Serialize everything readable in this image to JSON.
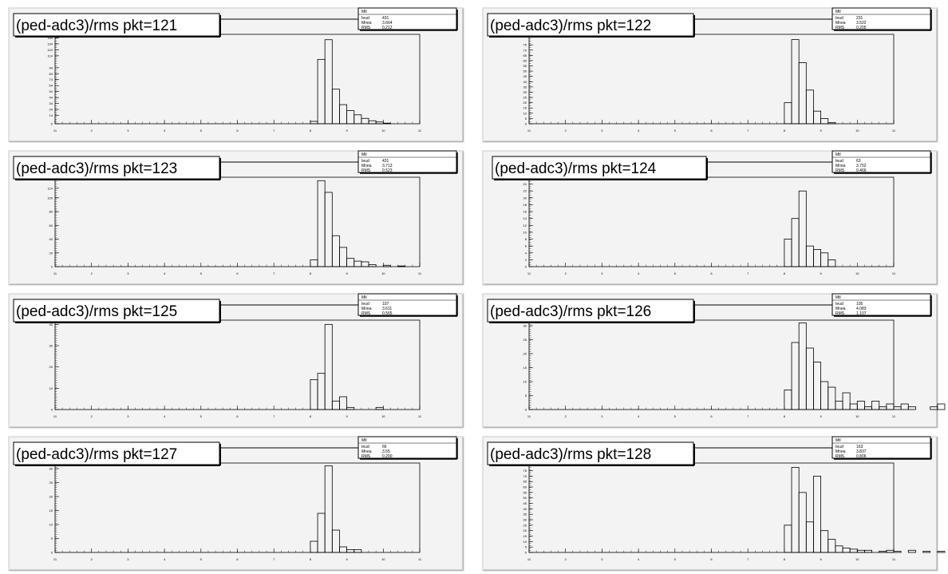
{
  "chart_data": [
    {
      "type": "bar",
      "title": "(ped-adc3)/rms pkt=121",
      "stats": {
        "name": "Mtl",
        "entries_label": "Ieud",
        "entries": "431",
        "mean_label": "Mnea",
        "mean": "3.664",
        "rms_label": "RMS",
        "rms": "0.212"
      },
      "xlim": [
        -11,
        11
      ],
      "ylim": [
        0,
        150
      ],
      "x_ticks": [
        "11",
        "2",
        "3",
        "4",
        "5",
        "6",
        "7",
        "8",
        "9",
        "10",
        "11"
      ],
      "y_ticks": [
        "0",
        "14",
        "24",
        "34",
        "44",
        "54",
        "64",
        "74",
        "84",
        "94",
        "114",
        "124",
        "134",
        "144"
      ],
      "bins": [
        {
          "x": 2.0,
          "y": 4
        },
        {
          "x": 2.2,
          "y": 108
        },
        {
          "x": 2.4,
          "y": 141
        },
        {
          "x": 2.6,
          "y": 58
        },
        {
          "x": 2.8,
          "y": 32
        },
        {
          "x": 3.0,
          "y": 22
        },
        {
          "x": 3.2,
          "y": 15
        },
        {
          "x": 3.4,
          "y": 9
        },
        {
          "x": 3.6,
          "y": 5
        },
        {
          "x": 3.8,
          "y": 3
        },
        {
          "x": 4.0,
          "y": 1
        }
      ]
    },
    {
      "type": "bar",
      "title": "(ped-adc3)/rms pkt=122",
      "stats": {
        "name": "Mtl",
        "entries_label": "Ieud",
        "entries": "231",
        "mean_label": "Mnea",
        "mean": "3.522",
        "rms_label": "RMS",
        "rms": "0.205"
      },
      "xlim": [
        -11,
        11
      ],
      "ylim": [
        0,
        85
      ],
      "x_ticks": [
        "11",
        "2",
        "3",
        "4",
        "5",
        "6",
        "7",
        "8",
        "9",
        "10",
        "11"
      ],
      "y_ticks": [
        "0",
        "5",
        "10",
        "15",
        "20",
        "25",
        "30",
        "35",
        "40",
        "45",
        "50",
        "55",
        "60",
        "65",
        "70",
        "75"
      ],
      "bins": [
        {
          "x": 2.0,
          "y": 20
        },
        {
          "x": 2.2,
          "y": 80
        },
        {
          "x": 2.4,
          "y": 58
        },
        {
          "x": 2.6,
          "y": 32
        },
        {
          "x": 2.8,
          "y": 12
        },
        {
          "x": 3.0,
          "y": 5
        },
        {
          "x": 3.2,
          "y": 1
        }
      ]
    },
    {
      "type": "bar",
      "title": "(ped-adc3)/rms pkt=123",
      "stats": {
        "name": "Mtl",
        "entries_label": "Ieud",
        "entries": "431",
        "mean_label": "Mnea",
        "mean": "3.713",
        "rms_label": "RMS",
        "rms": "0.523"
      },
      "xlim": [
        -11,
        11
      ],
      "ylim": [
        0,
        130
      ],
      "x_ticks": [
        "11",
        "2",
        "3",
        "4",
        "5",
        "6",
        "7",
        "8",
        "9",
        "10",
        "11"
      ],
      "y_ticks": [
        "0",
        "20",
        "40",
        "60",
        "80",
        "100",
        "114"
      ],
      "bins": [
        {
          "x": 2.0,
          "y": 10
        },
        {
          "x": 2.2,
          "y": 125
        },
        {
          "x": 2.4,
          "y": 108
        },
        {
          "x": 2.6,
          "y": 45
        },
        {
          "x": 2.8,
          "y": 28
        },
        {
          "x": 3.0,
          "y": 12
        },
        {
          "x": 3.2,
          "y": 8
        },
        {
          "x": 3.4,
          "y": 7
        },
        {
          "x": 3.6,
          "y": 3
        },
        {
          "x": 4.0,
          "y": 2
        },
        {
          "x": 4.4,
          "y": 1
        }
      ]
    },
    {
      "type": "bar",
      "title": "(ped-adc3)/rms pkt=124",
      "stats": {
        "name": "Mtl",
        "entries_label": "Ieud",
        "entries": "63",
        "mean_label": "Mnea",
        "mean": "3.752",
        "rms_label": "RMS",
        "rms": "0.466"
      },
      "xlim": [
        -11,
        11
      ],
      "ylim": [
        0,
        26
      ],
      "x_ticks": [
        "11",
        "2",
        "3",
        "4",
        "5",
        "6",
        "7",
        "8",
        "9",
        "10",
        "11"
      ],
      "y_ticks": [
        "0",
        "2",
        "4",
        "6",
        "8",
        "10",
        "12",
        "14",
        "16",
        "18",
        "20",
        "22",
        "24"
      ],
      "bins": [
        {
          "x": 2.0,
          "y": 8
        },
        {
          "x": 2.2,
          "y": 14
        },
        {
          "x": 2.4,
          "y": 22
        },
        {
          "x": 2.6,
          "y": 6
        },
        {
          "x": 2.8,
          "y": 5
        },
        {
          "x": 3.0,
          "y": 4
        },
        {
          "x": 3.2,
          "y": 2
        }
      ]
    },
    {
      "type": "bar",
      "title": "(ped-adc3)/rms pkt=125",
      "stats": {
        "name": "Mtl",
        "entries_label": "Ieud",
        "entries": "107",
        "mean_label": "Mnea",
        "mean": "3.611",
        "rms_label": "RMS",
        "rms": "0.565"
      },
      "xlim": [
        -11,
        11
      ],
      "ylim": [
        0,
        42
      ],
      "x_ticks": [
        "11",
        "2",
        "3",
        "4",
        "5",
        "6",
        "7",
        "8",
        "9",
        "10",
        "11"
      ],
      "y_ticks": [
        "0",
        "10",
        "20",
        "30",
        "40"
      ],
      "bins": [
        {
          "x": 2.0,
          "y": 14
        },
        {
          "x": 2.2,
          "y": 17
        },
        {
          "x": 2.4,
          "y": 40
        },
        {
          "x": 2.6,
          "y": 4
        },
        {
          "x": 2.8,
          "y": 6
        },
        {
          "x": 3.0,
          "y": 1
        },
        {
          "x": 3.8,
          "y": 1
        }
      ]
    },
    {
      "type": "bar",
      "title": "(ped-adc3)/rms pkt=126",
      "stats": {
        "name": "Mtl",
        "entries_label": "Ieud",
        "entries": "105",
        "mean_label": "Mnea",
        "mean": "4.083",
        "rms_label": "RMS",
        "rms": "1.107"
      },
      "xlim": [
        -11,
        11
      ],
      "ylim": [
        0,
        32
      ],
      "x_ticks": [
        "11",
        "2",
        "3",
        "4",
        "5",
        "6",
        "7",
        "8",
        "9",
        "10",
        "11"
      ],
      "y_ticks": [
        "0",
        "5",
        "10",
        "15",
        "20",
        "25",
        "30"
      ],
      "bins": [
        {
          "x": 2.0,
          "y": 7
        },
        {
          "x": 2.2,
          "y": 24
        },
        {
          "x": 2.4,
          "y": 31
        },
        {
          "x": 2.6,
          "y": 22
        },
        {
          "x": 2.8,
          "y": 17
        },
        {
          "x": 3.0,
          "y": 10
        },
        {
          "x": 3.2,
          "y": 8
        },
        {
          "x": 3.4,
          "y": 3
        },
        {
          "x": 3.6,
          "y": 6
        },
        {
          "x": 3.8,
          "y": 2
        },
        {
          "x": 4.0,
          "y": 3
        },
        {
          "x": 4.2,
          "y": 1
        },
        {
          "x": 4.4,
          "y": 3
        },
        {
          "x": 4.6,
          "y": 1
        },
        {
          "x": 4.8,
          "y": 2
        },
        {
          "x": 5.0,
          "y": 1
        },
        {
          "x": 5.2,
          "y": 2
        },
        {
          "x": 5.4,
          "y": 1
        },
        {
          "x": 6.0,
          "y": 1
        },
        {
          "x": 6.2,
          "y": 2
        },
        {
          "x": 6.6,
          "y": 1
        }
      ]
    },
    {
      "type": "bar",
      "title": "(ped-adc3)/rms pkt=127",
      "stats": {
        "name": "Mtl",
        "entries_label": "Ieud",
        "entries": "66",
        "mean_label": "Mnea",
        "mean": "3.55",
        "rms_label": "RMS",
        "rms": "0.200"
      },
      "xlim": [
        -11,
        11
      ],
      "ylim": [
        0,
        32
      ],
      "x_ticks": [
        "11",
        "2",
        "3",
        "4",
        "5",
        "6",
        "7",
        "8",
        "9",
        "10",
        "11"
      ],
      "y_ticks": [
        "0",
        "5",
        "10",
        "15",
        "20",
        "25",
        "30"
      ],
      "bins": [
        {
          "x": 2.0,
          "y": 4
        },
        {
          "x": 2.2,
          "y": 14
        },
        {
          "x": 2.4,
          "y": 31
        },
        {
          "x": 2.6,
          "y": 8
        },
        {
          "x": 2.8,
          "y": 2
        },
        {
          "x": 3.0,
          "y": 1
        },
        {
          "x": 3.2,
          "y": 1
        }
      ]
    },
    {
      "type": "bar",
      "title": "(ped-adc3)/rms pkt=128",
      "stats": {
        "name": "Mtl",
        "entries_label": "Ieud",
        "entries": "163",
        "mean_label": "Mnea",
        "mean": "3.837",
        "rms_label": "RMS",
        "rms": "0.806"
      },
      "xlim": [
        -11,
        11
      ],
      "ylim": [
        0,
        82
      ],
      "x_ticks": [
        "11",
        "2",
        "3",
        "4",
        "5",
        "6",
        "7",
        "8",
        "9",
        "10",
        "11"
      ],
      "y_ticks": [
        "0",
        "5",
        "10",
        "15",
        "20",
        "25",
        "30",
        "35",
        "40",
        "45",
        "50",
        "55",
        "60",
        "65",
        "70",
        "75"
      ],
      "bins": [
        {
          "x": 2.0,
          "y": 25
        },
        {
          "x": 2.2,
          "y": 78
        },
        {
          "x": 2.4,
          "y": 55
        },
        {
          "x": 2.6,
          "y": 28
        },
        {
          "x": 2.8,
          "y": 70
        },
        {
          "x": 3.0,
          "y": 20
        },
        {
          "x": 3.2,
          "y": 12
        },
        {
          "x": 3.4,
          "y": 6
        },
        {
          "x": 3.6,
          "y": 4
        },
        {
          "x": 3.8,
          "y": 3
        },
        {
          "x": 4.0,
          "y": 2
        },
        {
          "x": 4.2,
          "y": 2
        },
        {
          "x": 4.6,
          "y": 1
        },
        {
          "x": 4.8,
          "y": 2
        },
        {
          "x": 5.0,
          "y": 1
        },
        {
          "x": 5.4,
          "y": 2
        },
        {
          "x": 5.8,
          "y": 1
        },
        {
          "x": 6.2,
          "y": 1
        },
        {
          "x": 6.6,
          "y": 1
        }
      ]
    }
  ]
}
